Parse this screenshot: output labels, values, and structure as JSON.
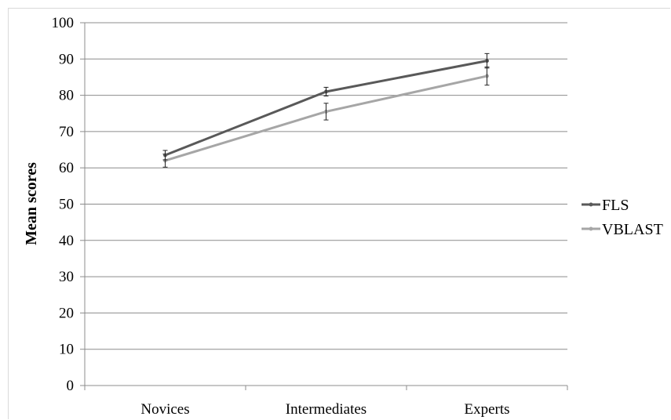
{
  "chart_data": {
    "type": "line",
    "title": "",
    "xlabel": "",
    "ylabel": "Mean scores",
    "ylim": [
      0,
      100
    ],
    "yticks": [
      0,
      10,
      20,
      30,
      40,
      50,
      60,
      70,
      80,
      90,
      100
    ],
    "categories": [
      "Novices",
      "Intermediates",
      "Experts"
    ],
    "grid": "horizontal",
    "legend": "right",
    "series": [
      {
        "name": "FLS",
        "color": "#595959",
        "values": [
          63.5,
          81.0,
          89.5
        ],
        "error": [
          1.3,
          1.2,
          2.0
        ]
      },
      {
        "name": "VBLAST",
        "color": "#a6a6a6",
        "values": [
          62.0,
          75.5,
          85.3
        ],
        "error": [
          1.8,
          2.3,
          2.5
        ]
      }
    ]
  }
}
